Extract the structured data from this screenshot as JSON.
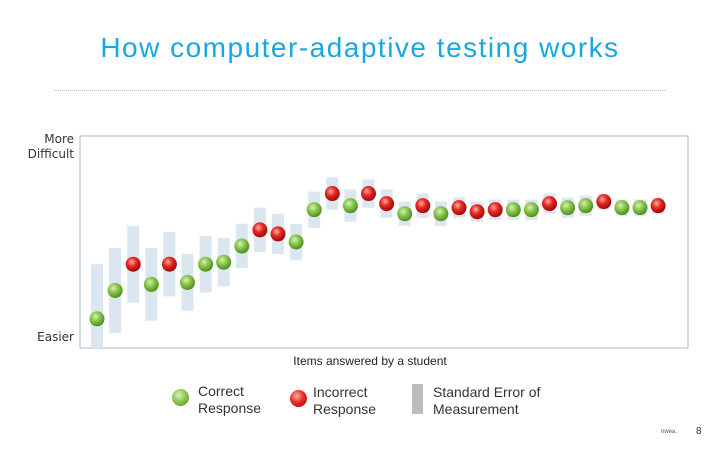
{
  "title": "How computer-adaptive testing works",
  "chart_data": {
    "type": "scatter",
    "title": "",
    "ylabel_top": "More\nDifficult",
    "ylabel_bottom": "Easier",
    "xlabel": "Items answered by a student",
    "ylim": [
      0,
      100
    ],
    "grid": false,
    "colors": {
      "correct": "#7ac142",
      "incorrect": "#e02020",
      "error_bar": "#dce6f0",
      "frame": "#a8b8cc"
    },
    "series": [
      {
        "name": "Correct Response",
        "values": [
          {
            "x": 1,
            "y": 12
          },
          {
            "x": 2,
            "y": 26
          },
          {
            "x": 4,
            "y": 29
          },
          {
            "x": 6,
            "y": 30
          },
          {
            "x": 7,
            "y": 39
          },
          {
            "x": 8,
            "y": 40
          },
          {
            "x": 9,
            "y": 48
          },
          {
            "x": 12,
            "y": 50
          },
          {
            "x": 13,
            "y": 66
          },
          {
            "x": 15,
            "y": 68
          },
          {
            "x": 18,
            "y": 64
          },
          {
            "x": 20,
            "y": 64
          },
          {
            "x": 24,
            "y": 66
          },
          {
            "x": 25,
            "y": 66
          },
          {
            "x": 27,
            "y": 67
          },
          {
            "x": 28,
            "y": 68
          },
          {
            "x": 30,
            "y": 67
          },
          {
            "x": 31,
            "y": 67
          }
        ]
      },
      {
        "name": "Incorrect Response",
        "values": [
          {
            "x": 3,
            "y": 39
          },
          {
            "x": 5,
            "y": 39
          },
          {
            "x": 10,
            "y": 56
          },
          {
            "x": 11,
            "y": 54
          },
          {
            "x": 14,
            "y": 74
          },
          {
            "x": 16,
            "y": 74
          },
          {
            "x": 17,
            "y": 69
          },
          {
            "x": 19,
            "y": 68
          },
          {
            "x": 21,
            "y": 67
          },
          {
            "x": 22,
            "y": 65
          },
          {
            "x": 23,
            "y": 66
          },
          {
            "x": 26,
            "y": 69
          },
          {
            "x": 29,
            "y": 70
          },
          {
            "x": 32,
            "y": 68
          }
        ]
      }
    ],
    "error_bars": [
      {
        "x": 1,
        "y": 12,
        "err": 27
      },
      {
        "x": 2,
        "y": 26,
        "err": 21
      },
      {
        "x": 3,
        "y": 39,
        "err": 19
      },
      {
        "x": 4,
        "y": 29,
        "err": 18
      },
      {
        "x": 5,
        "y": 39,
        "err": 16
      },
      {
        "x": 6,
        "y": 30,
        "err": 14
      },
      {
        "x": 7,
        "y": 39,
        "err": 14
      },
      {
        "x": 8,
        "y": 40,
        "err": 12
      },
      {
        "x": 9,
        "y": 48,
        "err": 11
      },
      {
        "x": 10,
        "y": 56,
        "err": 11
      },
      {
        "x": 11,
        "y": 54,
        "err": 10
      },
      {
        "x": 12,
        "y": 50,
        "err": 9
      },
      {
        "x": 13,
        "y": 66,
        "err": 9
      },
      {
        "x": 14,
        "y": 74,
        "err": 8
      },
      {
        "x": 15,
        "y": 68,
        "err": 8
      },
      {
        "x": 16,
        "y": 74,
        "err": 7
      },
      {
        "x": 17,
        "y": 69,
        "err": 7
      },
      {
        "x": 18,
        "y": 64,
        "err": 6
      },
      {
        "x": 19,
        "y": 68,
        "err": 6
      },
      {
        "x": 20,
        "y": 64,
        "err": 6
      },
      {
        "x": 21,
        "y": 67,
        "err": 5
      },
      {
        "x": 22,
        "y": 65,
        "err": 5
      },
      {
        "x": 23,
        "y": 66,
        "err": 5
      },
      {
        "x": 24,
        "y": 66,
        "err": 5
      },
      {
        "x": 25,
        "y": 66,
        "err": 5
      },
      {
        "x": 26,
        "y": 69,
        "err": 5
      },
      {
        "x": 27,
        "y": 67,
        "err": 5
      },
      {
        "x": 28,
        "y": 68,
        "err": 5
      },
      {
        "x": 29,
        "y": 70,
        "err": 4
      },
      {
        "x": 30,
        "y": 67,
        "err": 4
      },
      {
        "x": 31,
        "y": 67,
        "err": 4
      },
      {
        "x": 32,
        "y": 68,
        "err": 4
      }
    ]
  },
  "legend": {
    "correct": "Correct\nResponse",
    "incorrect": "Incorrect\nResponse",
    "sem": "Standard Error of\nMeasurement"
  },
  "footer": {
    "small": "nwea.",
    "page": "8"
  }
}
